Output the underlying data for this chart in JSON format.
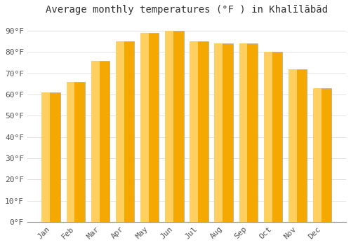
{
  "title": "Average monthly temperatures (°F ) in Khalīlābād",
  "months": [
    "Jan",
    "Feb",
    "Mar",
    "Apr",
    "May",
    "Jun",
    "Jul",
    "Aug",
    "Sep",
    "Oct",
    "Nov",
    "Dec"
  ],
  "values": [
    61,
    66,
    76,
    85,
    89,
    90,
    85,
    84,
    84,
    80,
    72,
    63
  ],
  "bar_color_dark": "#F5A800",
  "bar_color_light": "#FFD060",
  "bar_edge_color": "#AAAAAA",
  "background_color": "#FFFFFF",
  "plot_bg_color": "#FFFFFF",
  "grid_color": "#DDDDDD",
  "yticks": [
    0,
    10,
    20,
    30,
    40,
    50,
    60,
    70,
    80,
    90
  ],
  "ylim": [
    0,
    95
  ],
  "ylabel_suffix": "°F",
  "title_fontsize": 10,
  "tick_fontsize": 8,
  "tick_color": "#555555",
  "bar_width": 0.75,
  "gradient_split": 0.45
}
